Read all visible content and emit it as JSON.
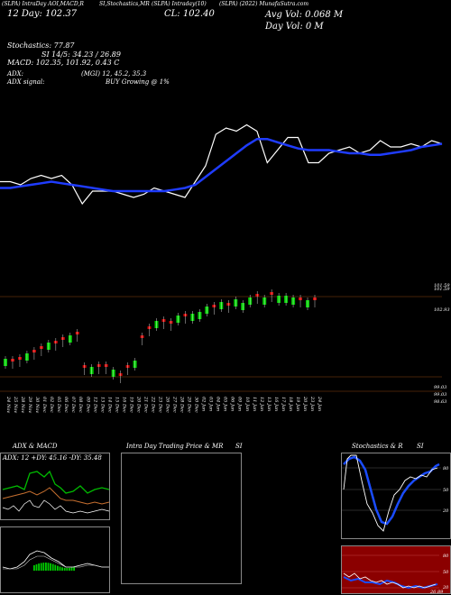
{
  "header": {
    "line1_left": "(SLPA) IntraDay AOI,MACD,R",
    "line1_mid": "SI,Stochastics,MR",
    "line1_mid2": "(SLPA) Intraday(10)",
    "line1_right": "(SLPA) (2022) MunafaSutra.com",
    "line2_left": "12 Day: 102.37",
    "line2_mid": "CL: 102.40",
    "avg_vol": "Avg Vol: 0.068  M",
    "day_vol": "Day Vol: 0  M",
    "stoch": "Stochastics: 77.87",
    "si": "SI 14/5: 34.23 / 26.89",
    "macd": "MACD: 102.35, 101.92, 0.43 C",
    "adx": "ADX:",
    "adx_val": "(MGI) 12, 45.2, 35.3",
    "adx_signal": "ADX signal:",
    "buy": "BUY Growing @ 1%"
  },
  "price_labels": {
    "top": "101.59",
    "mid": "102.93",
    "low1": "99.03",
    "low2": "99.03",
    "low3": "98.63"
  },
  "dates": [
    "24 Nov",
    "25 Nov",
    "28 Nov",
    "29 Nov",
    "30 Nov",
    "01 Dec",
    "02 Dec",
    "05 Dec",
    "06 Dec",
    "07 Dec",
    "08 Dec",
    "09 Dec",
    "12 Dec",
    "13 Dec",
    "14 Dec",
    "15 Dec",
    "16 Dec",
    "19 Dec",
    "20 Dec",
    "21 Dec",
    "22 Dec",
    "23 Dec",
    "26 Dec",
    "27 Dec",
    "28 Dec",
    "29 Dec",
    "30 Dec",
    "02 Jan",
    "03 Jan",
    "04 Jan",
    "05 Jan",
    "06 Jan",
    "09 Jan",
    "10 Jan",
    "11 Jan",
    "12 Jan",
    "13 Jan",
    "16 Jan",
    "17 Jan",
    "18 Jan",
    "19 Jan",
    "20 Jan",
    "23 Jan",
    "24 Jan"
  ],
  "panels": {
    "adx_title": "ADX  & MACD",
    "adx_text": "ADX: 12  +DY: 45.16  -DY: 35.48",
    "mr_title": "Intra  Day Trading Price  & MR",
    "mr_si": "SI",
    "stoch_title": "Stochastics & R",
    "stoch_si": "SI",
    "stoch_ticks": [
      "80",
      "50",
      "20"
    ],
    "rsi_ticks": [
      "80",
      "50",
      "20"
    ],
    "rsi_val": "26.89"
  },
  "colors": {
    "ma": "#1f3cff",
    "price": "#ffffff",
    "up": "#00cc00",
    "down": "#cc0000",
    "rsi_bg": "#8b0000",
    "gridline": "#8b4513"
  },
  "chart_data": {
    "type": "line",
    "title": "(SLPA) (2022) MunafaSutra.com",
    "x": [
      "24 Nov",
      "25 Nov",
      "28 Nov",
      "29 Nov",
      "30 Nov",
      "01 Dec",
      "02 Dec",
      "05 Dec",
      "06 Dec",
      "07 Dec",
      "08 Dec",
      "09 Dec",
      "12 Dec",
      "13 Dec",
      "14 Dec",
      "15 Dec",
      "16 Dec",
      "19 Dec",
      "20 Dec",
      "21 Dec",
      "22 Dec",
      "23 Dec",
      "26 Dec",
      "27 Dec",
      "28 Dec",
      "29 Dec",
      "30 Dec",
      "02 Jan",
      "03 Jan",
      "04 Jan",
      "05 Jan",
      "06 Jan",
      "09 Jan",
      "10 Jan",
      "11 Jan",
      "12 Jan",
      "13 Jan",
      "16 Jan",
      "17 Jan",
      "18 Jan",
      "19 Jan",
      "20 Jan",
      "23 Jan",
      "24 Jan"
    ],
    "series": [
      {
        "name": "price",
        "values": [
          99.6,
          99.6,
          99.5,
          99.7,
          99.8,
          99.7,
          99.8,
          99.5,
          98.9,
          99.3,
          99.3,
          99.3,
          99.2,
          99.1,
          99.2,
          99.4,
          99.3,
          99.2,
          99.1,
          99.6,
          100.1,
          101.1,
          101.3,
          101.2,
          101.4,
          101.2,
          100.2,
          100.6,
          101.0,
          101.0,
          100.2,
          100.2,
          100.5,
          100.6,
          100.7,
          100.5,
          100.6,
          100.9,
          100.7,
          100.7,
          100.8,
          100.7,
          100.9,
          100.8
        ]
      },
      {
        "name": "ma",
        "values": [
          99.4,
          99.4,
          99.45,
          99.5,
          99.55,
          99.6,
          99.55,
          99.5,
          99.45,
          99.4,
          99.35,
          99.3,
          99.3,
          99.3,
          99.3,
          99.3,
          99.3,
          99.35,
          99.4,
          99.5,
          99.75,
          100.0,
          100.25,
          100.5,
          100.75,
          100.95,
          100.95,
          100.85,
          100.75,
          100.65,
          100.6,
          100.6,
          100.6,
          100.55,
          100.5,
          100.5,
          100.45,
          100.45,
          100.5,
          100.55,
          100.6,
          100.7,
          100.75,
          100.8
        ]
      }
    ],
    "candles": {
      "open": [
        null,
        null,
        null,
        null,
        null,
        null,
        null,
        null,
        null,
        null,
        null,
        null,
        null,
        null,
        null,
        null,
        null,
        null,
        null,
        null,
        null,
        null,
        null,
        null,
        null,
        null,
        null,
        null,
        null,
        null,
        null,
        null,
        null,
        null,
        null,
        null,
        null,
        null,
        null,
        null,
        null,
        null,
        null,
        null
      ]
    },
    "ylim": [
      98.5,
      102.5
    ]
  }
}
